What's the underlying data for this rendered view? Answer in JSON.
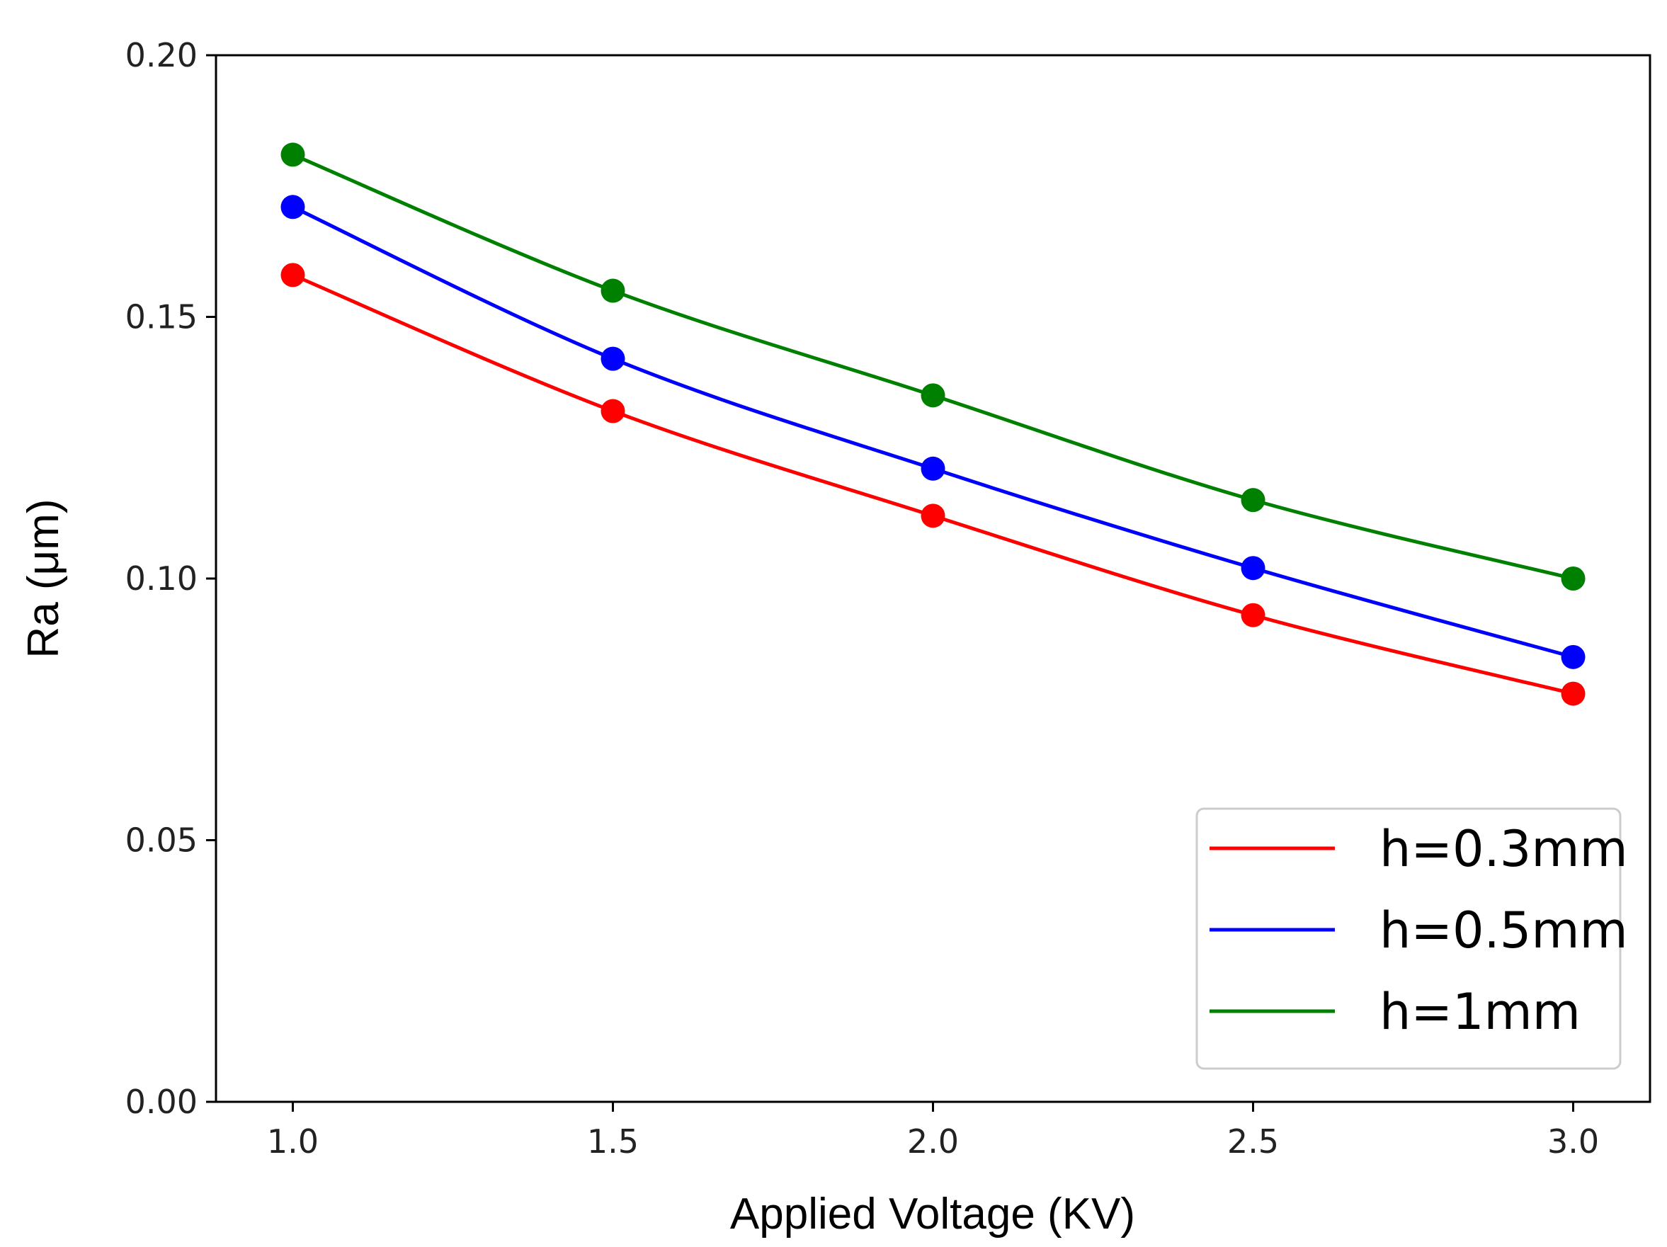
{
  "chart_data": {
    "type": "line",
    "title": "",
    "xlabel": "Applied Voltage (KV)",
    "ylabel": "Ra (μm)",
    "x": [
      1.0,
      1.5,
      2.0,
      2.5,
      3.0
    ],
    "xlim": [
      0.88,
      3.12
    ],
    "ylim": [
      0.0,
      0.2
    ],
    "xticks": [
      1.0,
      1.5,
      2.0,
      2.5,
      3.0
    ],
    "xtick_labels": [
      "1.0",
      "1.5",
      "2.0",
      "2.5",
      "3.0"
    ],
    "yticks": [
      0.0,
      0.05,
      0.1,
      0.15,
      0.2
    ],
    "ytick_labels": [
      "0.00",
      "0.05",
      "0.10",
      "0.15",
      "0.20"
    ],
    "grid": false,
    "legend_position": "bottom-right",
    "series": [
      {
        "name": "h=0.3mm",
        "color": "#ff0000",
        "values": [
          0.158,
          0.132,
          0.112,
          0.093,
          0.078
        ]
      },
      {
        "name": "h=0.5mm",
        "color": "#0000ff",
        "values": [
          0.171,
          0.142,
          0.121,
          0.102,
          0.085
        ]
      },
      {
        "name": "h=1mm",
        "color": "#008000",
        "values": [
          0.181,
          0.155,
          0.135,
          0.115,
          0.1
        ]
      }
    ]
  }
}
